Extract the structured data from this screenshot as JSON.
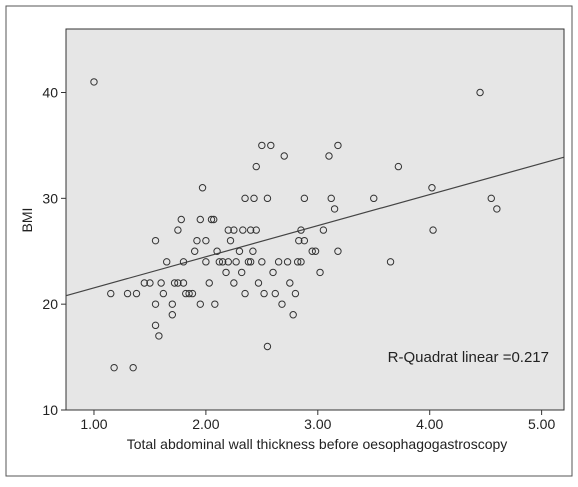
{
  "chart_data": {
    "type": "scatter",
    "title": "",
    "xlabel": "Total abdominal wall thickness before oesophagogastroscopy",
    "ylabel": "BMI",
    "xlim": [
      0.75,
      5.2
    ],
    "ylim": [
      10,
      46
    ],
    "xticks": [
      1.0,
      2.0,
      3.0,
      4.0,
      5.0
    ],
    "xtick_labels": [
      "1.00",
      "2.00",
      "3.00",
      "4.00",
      "5.00"
    ],
    "yticks": [
      10,
      20,
      30,
      40
    ],
    "ytick_labels": [
      "10",
      "20",
      "30",
      "40"
    ],
    "grid": false,
    "background_color": "#e6e6e6",
    "marker_color": "#333333",
    "line_color": "#444444",
    "fit_line": {
      "intercept": 18.6,
      "slope": 2.94
    },
    "annotation": "R-Quadrat linear =0.217",
    "points": [
      [
        1.0,
        41
      ],
      [
        1.15,
        21
      ],
      [
        1.18,
        14
      ],
      [
        1.3,
        21
      ],
      [
        1.35,
        14
      ],
      [
        1.38,
        21
      ],
      [
        1.45,
        22
      ],
      [
        1.5,
        22
      ],
      [
        1.55,
        26
      ],
      [
        1.55,
        20
      ],
      [
        1.55,
        18
      ],
      [
        1.58,
        17
      ],
      [
        1.6,
        22
      ],
      [
        1.62,
        21
      ],
      [
        1.65,
        24
      ],
      [
        1.7,
        20
      ],
      [
        1.7,
        19
      ],
      [
        1.72,
        22
      ],
      [
        1.75,
        27
      ],
      [
        1.75,
        22
      ],
      [
        1.78,
        28
      ],
      [
        1.8,
        24
      ],
      [
        1.8,
        22
      ],
      [
        1.82,
        21
      ],
      [
        1.85,
        21
      ],
      [
        1.88,
        21
      ],
      [
        1.9,
        25
      ],
      [
        1.92,
        26
      ],
      [
        1.95,
        20
      ],
      [
        1.95,
        28
      ],
      [
        1.97,
        31
      ],
      [
        2.0,
        24
      ],
      [
        2.0,
        26
      ],
      [
        2.03,
        22
      ],
      [
        2.05,
        28
      ],
      [
        2.07,
        28
      ],
      [
        2.08,
        20
      ],
      [
        2.1,
        25
      ],
      [
        2.12,
        24
      ],
      [
        2.15,
        24
      ],
      [
        2.18,
        23
      ],
      [
        2.2,
        27
      ],
      [
        2.2,
        24
      ],
      [
        2.22,
        26
      ],
      [
        2.25,
        22
      ],
      [
        2.25,
        27
      ],
      [
        2.27,
        24
      ],
      [
        2.3,
        25
      ],
      [
        2.32,
        23
      ],
      [
        2.33,
        27
      ],
      [
        2.35,
        30
      ],
      [
        2.35,
        21
      ],
      [
        2.38,
        24
      ],
      [
        2.4,
        27
      ],
      [
        2.4,
        24
      ],
      [
        2.42,
        25
      ],
      [
        2.43,
        30
      ],
      [
        2.45,
        33
      ],
      [
        2.45,
        27
      ],
      [
        2.47,
        22
      ],
      [
        2.5,
        35
      ],
      [
        2.5,
        24
      ],
      [
        2.52,
        21
      ],
      [
        2.55,
        16
      ],
      [
        2.55,
        30
      ],
      [
        2.58,
        35
      ],
      [
        2.6,
        23
      ],
      [
        2.62,
        21
      ],
      [
        2.65,
        24
      ],
      [
        2.68,
        20
      ],
      [
        2.7,
        34
      ],
      [
        2.73,
        24
      ],
      [
        2.75,
        22
      ],
      [
        2.78,
        19
      ],
      [
        2.8,
        21
      ],
      [
        2.82,
        24
      ],
      [
        2.83,
        26
      ],
      [
        2.85,
        27
      ],
      [
        2.85,
        24
      ],
      [
        2.88,
        30
      ],
      [
        2.88,
        26
      ],
      [
        2.95,
        25
      ],
      [
        2.98,
        25
      ],
      [
        3.02,
        23
      ],
      [
        3.05,
        27
      ],
      [
        3.1,
        34
      ],
      [
        3.12,
        30
      ],
      [
        3.15,
        29
      ],
      [
        3.18,
        35
      ],
      [
        3.18,
        25
      ],
      [
        3.5,
        30
      ],
      [
        3.65,
        24
      ],
      [
        3.72,
        33
      ],
      [
        4.02,
        31
      ],
      [
        4.03,
        27
      ],
      [
        4.45,
        40
      ],
      [
        4.55,
        30
      ],
      [
        4.6,
        29
      ]
    ]
  }
}
